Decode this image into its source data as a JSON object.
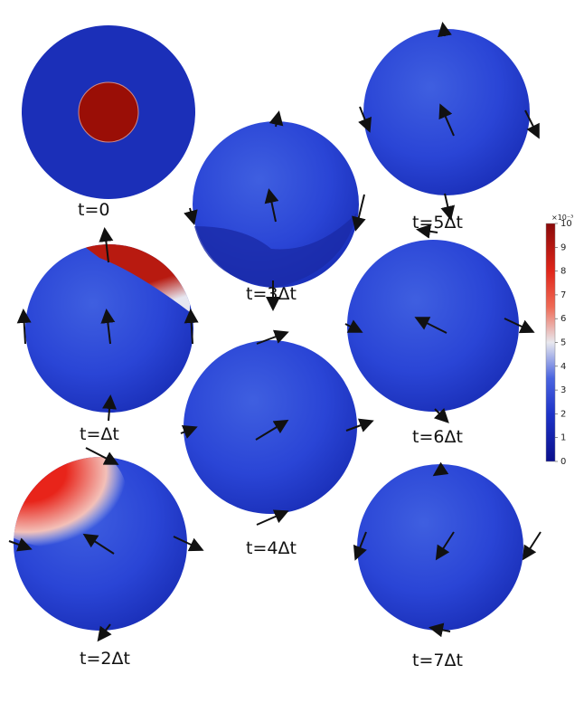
{
  "panels": [
    {
      "label": "t=0"
    },
    {
      "label": "t=Δt"
    },
    {
      "label": "t=2Δt"
    },
    {
      "label": "t=3Δt"
    },
    {
      "label": "t=4Δt"
    },
    {
      "label": "t=5Δt"
    },
    {
      "label": "t=6Δt"
    },
    {
      "label": "t=7Δt"
    }
  ],
  "colorbar": {
    "exponent_label": "×10⁻³",
    "ticks": [
      0,
      1,
      2,
      3,
      4,
      5,
      6,
      7,
      8,
      9,
      10
    ]
  }
}
